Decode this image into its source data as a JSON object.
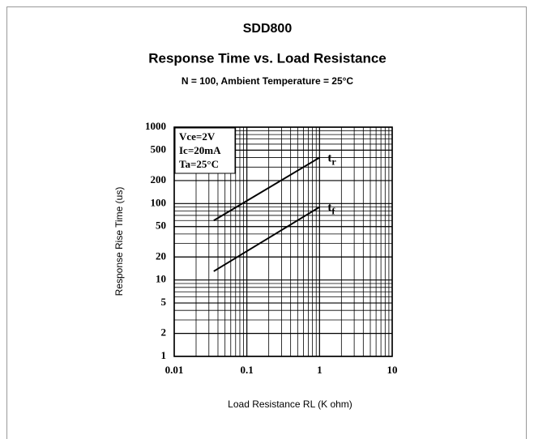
{
  "chart_data": {
    "type": "line",
    "title": "SDD800",
    "subtitle": "Response Time vs. Load Resistance",
    "note": "N = 100, Ambient Temperature = 25°C",
    "xlabel": "Load Resistance RL (K ohm)",
    "ylabel": "Response Rise Time (us)",
    "annotations": [
      "Vce=2V",
      "Ic=20mA",
      "Ta=25°C"
    ],
    "x": [
      0.035,
      1
    ],
    "series": [
      {
        "name": "tr",
        "color": "#000000",
        "values": [
          60,
          400
        ]
      },
      {
        "name": "tf",
        "color": "#000000",
        "values": [
          13,
          90
        ]
      }
    ],
    "xlim": [
      0.01,
      10
    ],
    "ylim": [
      1,
      1000
    ],
    "xticks": [
      0.01,
      0.1,
      1,
      10
    ],
    "yticks": [
      1000,
      500,
      200,
      100,
      50,
      20,
      10,
      5,
      2,
      1
    ],
    "xscale": "log",
    "yscale": "log",
    "grid": true
  }
}
